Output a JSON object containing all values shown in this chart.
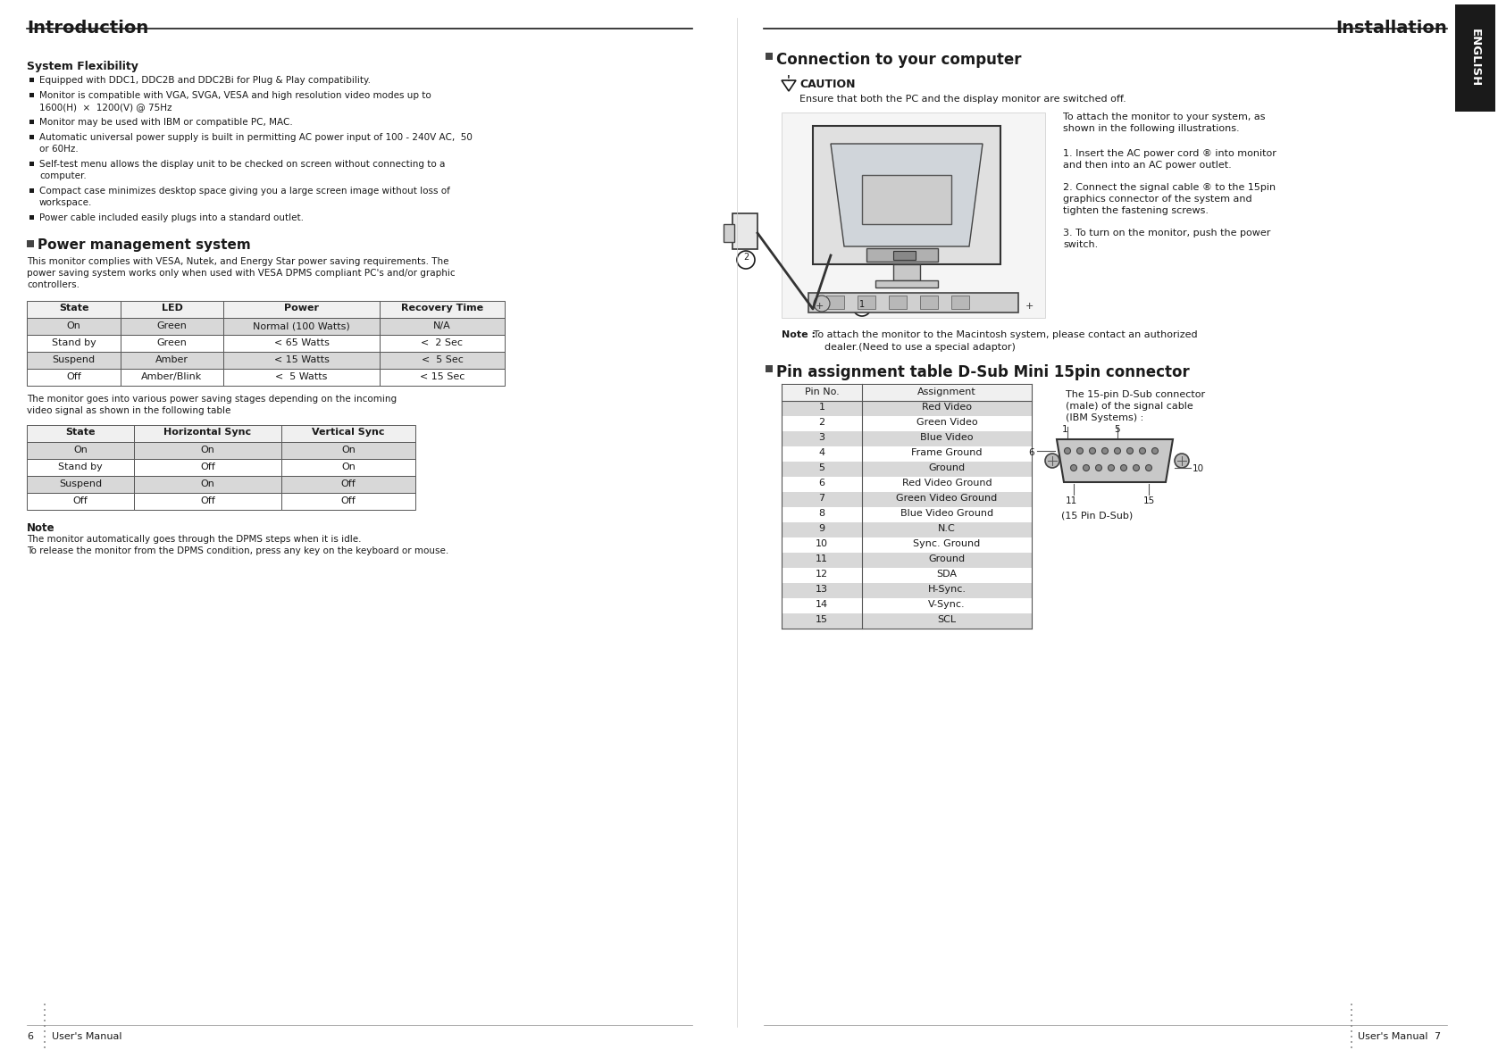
{
  "page_bg": "#ffffff",
  "left_title": "Introduction",
  "right_title": "Installation",
  "english_tab_color": "#1a1a1a",
  "english_text": "ENGLISH",
  "system_flexibility_title": "System Flexibility",
  "system_flexibility_bullets": [
    "Equipped with DDC1, DDC2B and DDC2Bi for Plug & Play compatibility.",
    "Monitor is compatible with VGA, SVGA, VESA and high resolution video modes up to\n1600(H)  ×  1200(V) @ 75Hz",
    "Monitor may be used with IBM or compatible PC, MAC.",
    "Automatic universal power supply is built in permitting AC power input of 100 - 240V AC,  50\nor 60Hz.",
    "Self-test menu allows the display unit to be checked on screen without connecting to a\ncomputer.",
    "Compact case minimizes desktop space giving you a large screen image without loss of\nworkspace.",
    "Power cable included easily plugs into a standard outlet."
  ],
  "power_mgmt_title": "Power management system",
  "power_mgmt_intro": "This monitor complies with VESA, Nutek, and Energy Star power saving requirements. The\npower saving system works only when used with VESA DPMS compliant PC's and/or graphic\ncontrollers.",
  "table1_headers": [
    "State",
    "LED",
    "Power",
    "Recovery Time"
  ],
  "table1_rows": [
    [
      "On",
      "Green",
      "Normal (100 Watts)",
      "N/A"
    ],
    [
      "Stand by",
      "Green",
      "< 65 Watts",
      "<  2 Sec"
    ],
    [
      "Suspend",
      "Amber",
      "< 15 Watts",
      "<  5 Sec"
    ],
    [
      "Off",
      "Amber/Blink",
      "<  5 Watts",
      "< 15 Sec"
    ]
  ],
  "table1_row_colors": [
    "#d8d8d8",
    "#ffffff",
    "#d8d8d8",
    "#ffffff"
  ],
  "power_mgmt_note_intro": "The monitor goes into various power saving stages depending on the incoming\nvideo signal as shown in the following table",
  "table2_headers": [
    "State",
    "Horizontal Sync",
    "Vertical Sync"
  ],
  "table2_rows": [
    [
      "On",
      "On",
      "On"
    ],
    [
      "Stand by",
      "Off",
      "On"
    ],
    [
      "Suspend",
      "On",
      "Off"
    ],
    [
      "Off",
      "Off",
      "Off"
    ]
  ],
  "table2_row_colors": [
    "#d8d8d8",
    "#ffffff",
    "#d8d8d8",
    "#ffffff"
  ],
  "note_title": "Note",
  "note_text": "The monitor automatically goes through the DPMS steps when it is idle.\nTo release the monitor from the DPMS condition, press any key on the keyboard or mouse.",
  "page_num_left": "6",
  "page_num_right": "7",
  "users_manual_left": "User's Manual",
  "users_manual_right": "User's Manual",
  "connection_title": "Connection to your computer",
  "caution_title": "CAUTION",
  "caution_text": "Ensure that both the PC and the display monitor are switched off.",
  "connection_step0": "To attach the monitor to your system, as\nshown in the following illustrations.",
  "connection_step1": "1. Insert the AC power cord ® into monitor\nand then into an AC power outlet.",
  "connection_step2": "2. Connect the signal cable ® to the 15pin\ngraphics connector of the system and\ntighten the fastening screws.",
  "connection_step3": "3. To turn on the monitor, push the power\nswitch.",
  "note_connection_bold": "Note :",
  "note_connection_text": " To attach the monitor to the Macintosh system, please contact an authorized",
  "note_connection_text2": "dealer.(Need to use a special adaptor)",
  "pin_title": "Pin assignment table D-Sub Mini 15pin connector",
  "pin_table_headers": [
    "Pin No.",
    "Assignment"
  ],
  "pin_table_rows": [
    [
      "1",
      "Red Video"
    ],
    [
      "2",
      "Green Video"
    ],
    [
      "3",
      "Blue Video"
    ],
    [
      "4",
      "Frame Ground"
    ],
    [
      "5",
      "Ground"
    ],
    [
      "6",
      "Red Video Ground"
    ],
    [
      "7",
      "Green Video Ground"
    ],
    [
      "8",
      "Blue Video Ground"
    ],
    [
      "9",
      "N.C"
    ],
    [
      "10",
      "Sync. Ground"
    ],
    [
      "11",
      "Ground"
    ],
    [
      "12",
      "SDA"
    ],
    [
      "13",
      "H-Sync."
    ],
    [
      "14",
      "V-Sync."
    ],
    [
      "15",
      "SCL"
    ]
  ],
  "pin_table_row_colors": [
    "#d8d8d8",
    "#ffffff",
    "#d8d8d8",
    "#ffffff",
    "#d8d8d8",
    "#ffffff",
    "#d8d8d8",
    "#ffffff",
    "#d8d8d8",
    "#ffffff",
    "#d8d8d8",
    "#ffffff",
    "#d8d8d8",
    "#ffffff",
    "#d8d8d8"
  ],
  "pin_connector_text1": "The 15-pin D-Sub connector",
  "pin_connector_text2": "(male) of the signal cable",
  "pin_connector_text3": "(IBM Systems) :",
  "pin_dsub_label": "(15 Pin D-Sub)",
  "dsub_pin_labels": [
    "1",
    "5",
    "6",
    "10",
    "11",
    "15"
  ]
}
